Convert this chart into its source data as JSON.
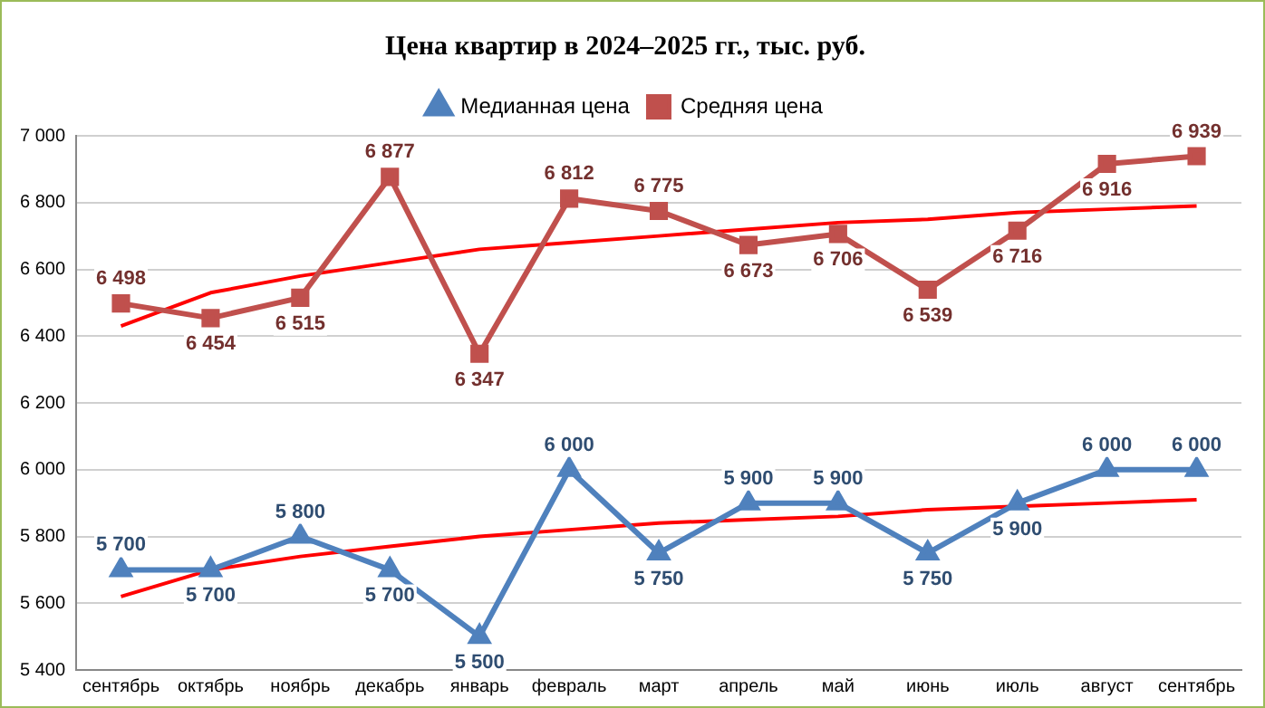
{
  "chart_data": {
    "type": "line",
    "title": "Цена квартир в 2024–2025 гг., тыс. руб.",
    "categories": [
      "сентябрь",
      "октябрь",
      "ноябрь",
      "декабрь",
      "январь",
      "февраль",
      "март",
      "апрель",
      "май",
      "июнь",
      "июль",
      "август",
      "сентябрь"
    ],
    "series": [
      {
        "name": "Медианная цена",
        "color": "#4f81bd",
        "marker": "triangle",
        "values": [
          5700,
          5700,
          5800,
          5700,
          5500,
          6000,
          5750,
          5900,
          5900,
          5750,
          5900,
          6000,
          6000
        ],
        "value_labels": [
          "5 700",
          "5 700",
          "5 800",
          "5 700",
          "5 500",
          "6 000",
          "5 750",
          "5 900",
          "5 900",
          "5 750",
          "5 900",
          "6 000",
          "6 000"
        ]
      },
      {
        "name": "Средняя цена",
        "color": "#c0504d",
        "marker": "square",
        "values": [
          6498,
          6454,
          6515,
          6877,
          6347,
          6812,
          6775,
          6673,
          6706,
          6539,
          6716,
          6916,
          6939
        ],
        "value_labels": [
          "6 498",
          "6 454",
          "6 515",
          "6 877",
          "6 347",
          "6 812",
          "6 775",
          "6 673",
          "6 706",
          "6 539",
          "6 716",
          "6 916",
          "6 939"
        ]
      },
      {
        "color": "#ff0000",
        "marker": "none",
        "values": [
          6430,
          6530,
          6580,
          6620,
          6660,
          6680,
          6700,
          6720,
          6740,
          6750,
          6770,
          6780,
          6790
        ]
      },
      {
        "color": "#ff0000",
        "marker": "none",
        "values": [
          5620,
          5700,
          5740,
          5770,
          5800,
          5820,
          5840,
          5850,
          5860,
          5880,
          5890,
          5900,
          5910
        ]
      }
    ],
    "ylim": [
      5400,
      7000
    ],
    "yticks": [
      {
        "value": 5400,
        "label": "5 400"
      },
      {
        "value": 5600,
        "label": "5 600"
      },
      {
        "value": 5800,
        "label": "5 800"
      },
      {
        "value": 6000,
        "label": "6 000"
      },
      {
        "value": 6200,
        "label": "6 200"
      },
      {
        "value": 6400,
        "label": "6 400"
      },
      {
        "value": 6600,
        "label": "6 600"
      },
      {
        "value": 6800,
        "label": "6 800"
      },
      {
        "value": 7000,
        "label": "7 000"
      }
    ],
    "grid": "y",
    "legend": "top",
    "line_style": "solid"
  }
}
